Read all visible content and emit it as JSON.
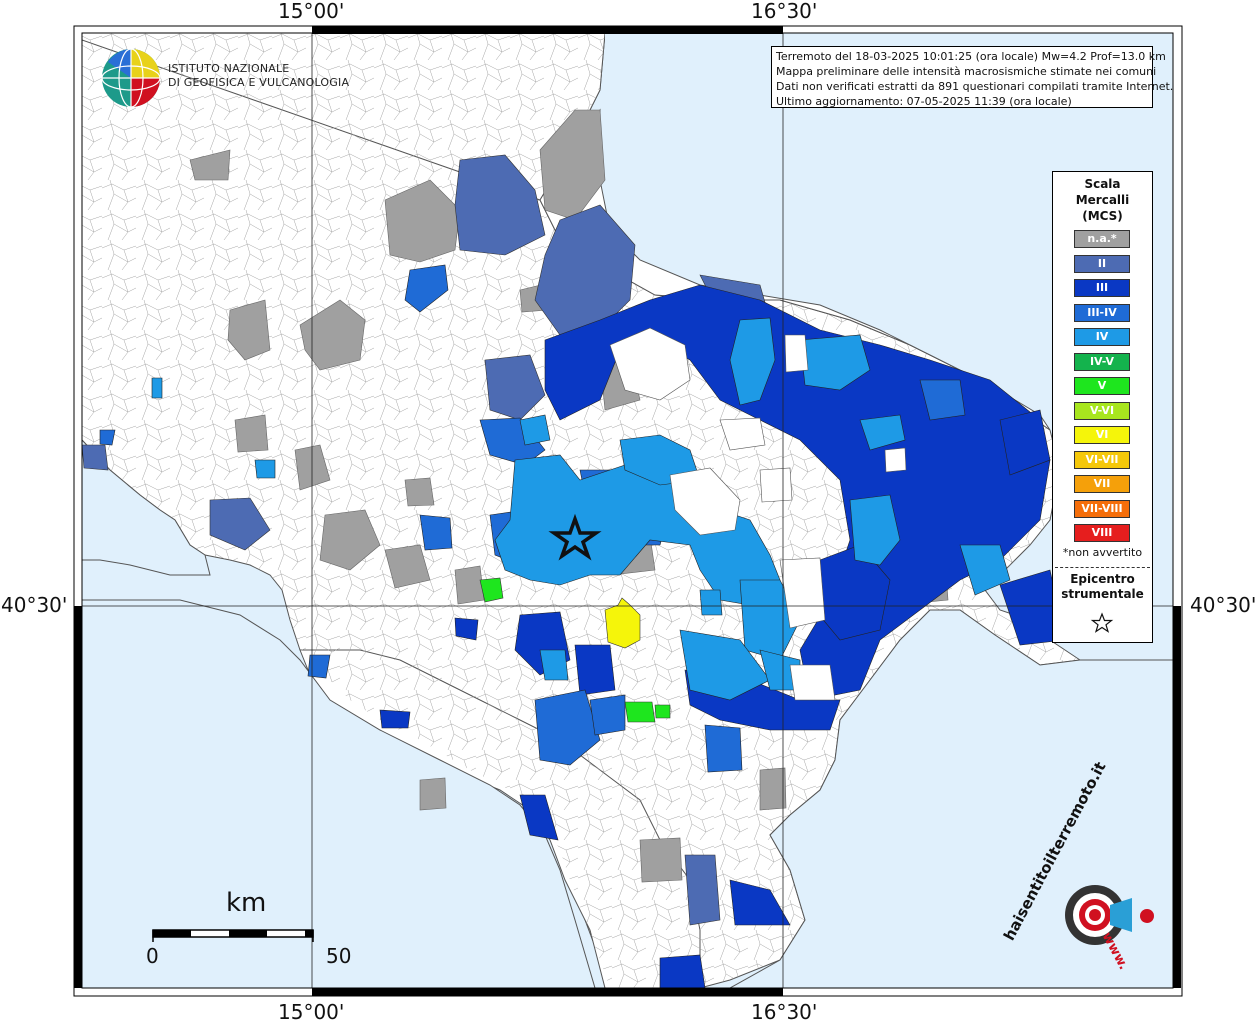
{
  "coords": {
    "lon_left": "15°00'",
    "lon_right": "16°30'",
    "lat": "40°30'"
  },
  "header": {
    "line1": "Terremoto del 18-03-2025 10:01:25 (ora locale) Mw=4.2 Prof=13.0 km",
    "line2": "Mappa preliminare delle intensità macrosismiche stimate nei comuni",
    "line3": "Dati non verificati estratti da 891 questionari compilati tramite Internet.",
    "line4": "Ultimo aggiornamento: 07-05-2025 11:39 (ora locale)"
  },
  "logo": {
    "line1": "ISTITUTO NAZIONALE",
    "line2": "DI GEOFISICA E VULCANOLOGIA",
    "haisentito": "haisentitoilterremoto.it",
    "www": "www."
  },
  "legend": {
    "title1": "Scala",
    "title2": "Mercalli",
    "title3": "(MCS)",
    "items": [
      {
        "label": "n.a.*",
        "color": "#a0a0a0"
      },
      {
        "label": "II",
        "color": "#4d6bb3"
      },
      {
        "label": "III",
        "color": "#0a38c4"
      },
      {
        "label": "III-IV",
        "color": "#1f6bd6"
      },
      {
        "label": "IV",
        "color": "#1e9ae6"
      },
      {
        "label": "IV-V",
        "color": "#14b34d"
      },
      {
        "label": "V",
        "color": "#1ee61e"
      },
      {
        "label": "V-VI",
        "color": "#a8e61e"
      },
      {
        "label": "VI",
        "color": "#f5f50a"
      },
      {
        "label": "VI-VII",
        "color": "#f5c80a"
      },
      {
        "label": "VII",
        "color": "#f5a00a"
      },
      {
        "label": "VII-VIII",
        "color": "#f56e0a"
      },
      {
        "label": "VIII",
        "color": "#e61e1e"
      }
    ],
    "na_note": "*non avvertito",
    "epi1": "Epicentro",
    "epi2": "strumentale"
  },
  "scalebar": {
    "unit": "km",
    "start": "0",
    "end": "50"
  },
  "colors": {
    "sea": "#e0f0fc",
    "land": "#ffffff",
    "na": "#a0a0a0",
    "ii": "#4d6bb3",
    "iii": "#0a38c4",
    "iii_iv": "#1f6bd6",
    "iv": "#1e9ae6",
    "v": "#1ee61e",
    "vi": "#f5f50a",
    "logo_red": "#d01020"
  }
}
